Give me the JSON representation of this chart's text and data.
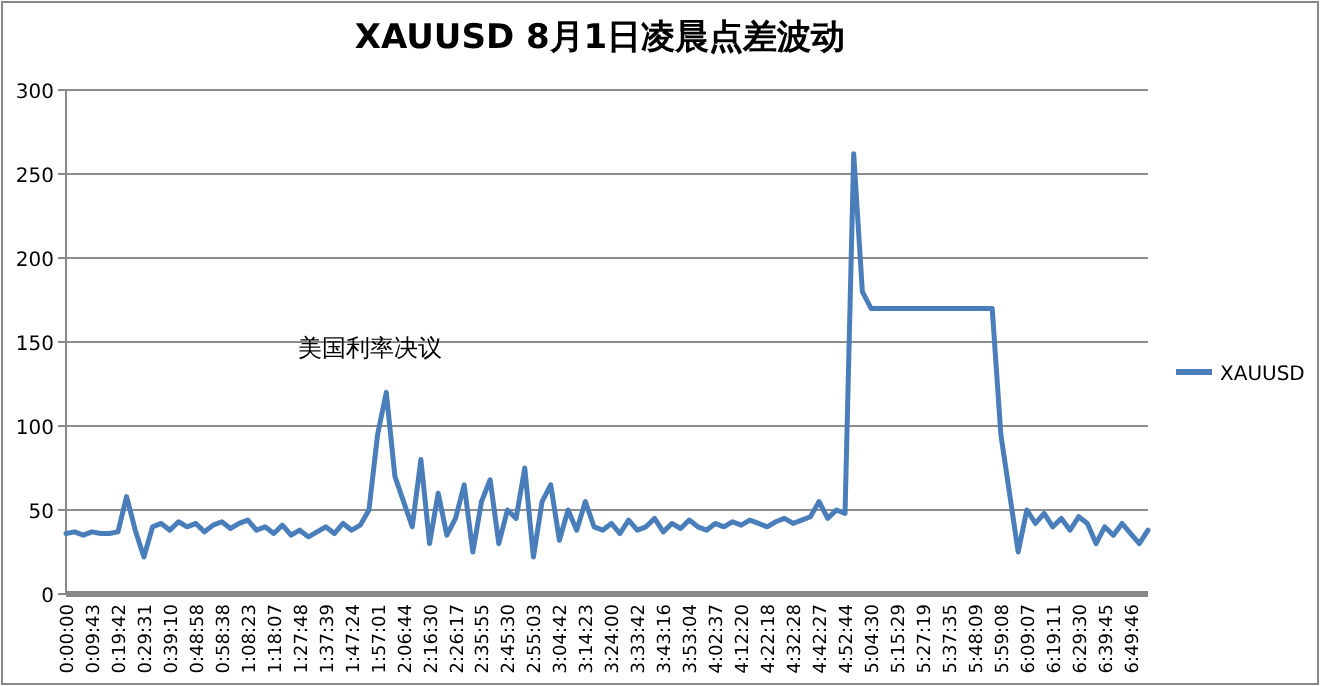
{
  "chart_data": {
    "type": "line",
    "title": "XAUUSD 8月1日凌晨点差波动",
    "categories": [
      "0:00:00",
      null,
      null,
      "0:09:43",
      null,
      null,
      "0:19:42",
      null,
      null,
      "0:29:31",
      null,
      null,
      "0:39:10",
      null,
      null,
      "0:48:58",
      null,
      null,
      "0:58:38",
      null,
      null,
      "1:08:23",
      null,
      null,
      "1:18:07",
      null,
      null,
      "1:27:48",
      null,
      null,
      "1:37:39",
      null,
      null,
      "1:47:24",
      null,
      null,
      "1:57:01",
      null,
      null,
      "2:06:44",
      null,
      null,
      "2:16:30",
      null,
      null,
      "2:26:17",
      null,
      null,
      "2:35:55",
      null,
      null,
      "2:45:30",
      null,
      null,
      "2:55:03",
      null,
      null,
      "3:04:42",
      null,
      null,
      "3:14:23",
      null,
      null,
      "3:24:00",
      null,
      null,
      "3:33:42",
      null,
      null,
      "3:43:16",
      null,
      null,
      "3:53:04",
      null,
      null,
      "4:02:37",
      null,
      null,
      "4:12:20",
      null,
      null,
      "4:22:18",
      null,
      null,
      "4:32:28",
      null,
      null,
      "4:42:27",
      null,
      null,
      "4:52:44",
      null,
      null,
      "5:04:30",
      null,
      null,
      "5:15:29",
      null,
      null,
      "5:27:19",
      null,
      null,
      "5:37:35",
      null,
      null,
      "5:48:09",
      null,
      null,
      "5:59:08",
      null,
      null,
      "6:09:07",
      null,
      null,
      "6:19:11",
      null,
      null,
      "6:29:30",
      null,
      null,
      "6:39:45",
      null,
      null,
      "6:49:46",
      null,
      null
    ],
    "series": [
      {
        "name": "XAUUSD",
        "color": "#4a7ebb",
        "values": [
          36,
          37,
          35,
          37,
          36,
          36,
          37,
          58,
          38,
          22,
          40,
          42,
          38,
          43,
          40,
          42,
          37,
          41,
          43,
          39,
          42,
          44,
          38,
          40,
          36,
          41,
          35,
          38,
          34,
          37,
          40,
          36,
          42,
          38,
          41,
          50,
          95,
          120,
          70,
          55,
          40,
          80,
          30,
          60,
          35,
          45,
          65,
          25,
          55,
          68,
          30,
          50,
          45,
          75,
          22,
          55,
          65,
          32,
          50,
          38,
          55,
          40,
          38,
          42,
          36,
          44,
          38,
          40,
          45,
          37,
          42,
          39,
          44,
          40,
          38,
          42,
          40,
          43,
          41,
          44,
          42,
          40,
          43,
          45,
          42,
          44,
          46,
          55,
          45,
          50,
          48,
          262,
          180,
          170,
          170,
          170,
          170,
          170,
          170,
          170,
          170,
          170,
          170,
          170,
          170,
          170,
          170,
          170,
          95,
          60,
          25,
          50,
          42,
          48,
          40,
          45,
          38,
          46,
          42,
          30,
          40,
          35,
          42,
          36,
          30,
          38
        ]
      }
    ],
    "ylim": [
      0,
      300
    ],
    "yticks": [
      0,
      50,
      100,
      150,
      200,
      250,
      300
    ],
    "grid": "y",
    "legend": "right",
    "annotations": [
      "美国利率决议"
    ]
  }
}
